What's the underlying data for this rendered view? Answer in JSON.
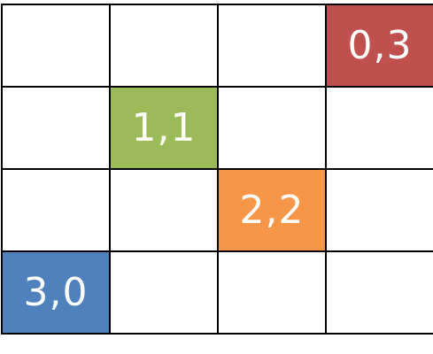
{
  "grid": {
    "rows": 4,
    "cols": 4,
    "highlighted": [
      {
        "row": 0,
        "col": 3,
        "label": "0,3",
        "color": "#c0504d"
      },
      {
        "row": 1,
        "col": 1,
        "label": "1,1",
        "color": "#9bbb59"
      },
      {
        "row": 2,
        "col": 2,
        "label": "2,2",
        "color": "#f79646"
      },
      {
        "row": 3,
        "col": 0,
        "label": "3,0",
        "color": "#4f81bd"
      }
    ]
  }
}
